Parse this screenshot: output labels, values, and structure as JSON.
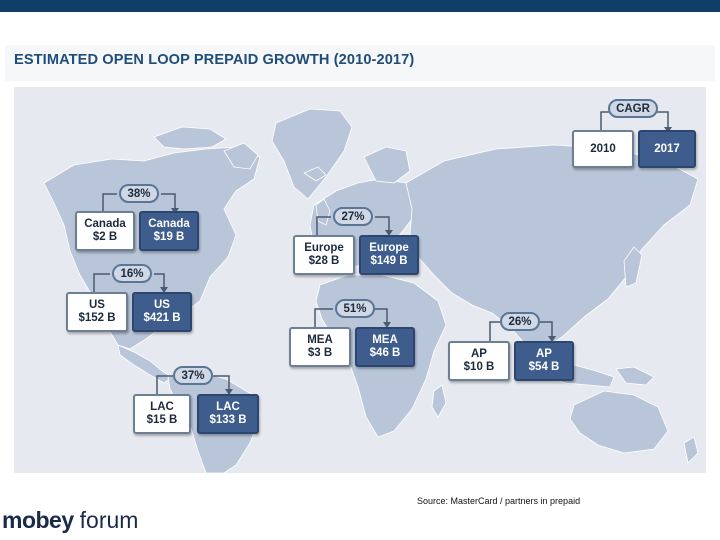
{
  "title": "ESTIMATED OPEN LOOP PREPAID GROWTH (2010-2017)",
  "source": "Source: MasterCard / partners in prepaid",
  "logo": {
    "part1": "mobey",
    "part2": "forum"
  },
  "colors": {
    "accent": "#1f4c78",
    "bar": "#0f3e66",
    "new_box": "#3e5d8c",
    "land": "#b9c5d8",
    "background": "#e6e9ef"
  },
  "legend": {
    "label": "CAGR",
    "old": "2010",
    "new": "2017"
  },
  "regions": [
    {
      "id": "canada",
      "name": "Canada",
      "cagr": "38%",
      "value_2010": "$2 B",
      "value_2017": "$19 B"
    },
    {
      "id": "europe",
      "name": "Europe",
      "cagr": "27%",
      "value_2010": "$28 B",
      "value_2017": "$149 B"
    },
    {
      "id": "us",
      "name": "US",
      "cagr": "16%",
      "value_2010": "$152 B",
      "value_2017": "$421 B"
    },
    {
      "id": "mea",
      "name": "MEA",
      "cagr": "51%",
      "value_2010": "$3 B",
      "value_2017": "$46 B"
    },
    {
      "id": "ap",
      "name": "AP",
      "cagr": "26%",
      "value_2010": "$10 B",
      "value_2017": "$54 B"
    },
    {
      "id": "lac",
      "name": "LAC",
      "cagr": "37%",
      "value_2010": "$15 B",
      "value_2017": "$133 B"
    }
  ]
}
